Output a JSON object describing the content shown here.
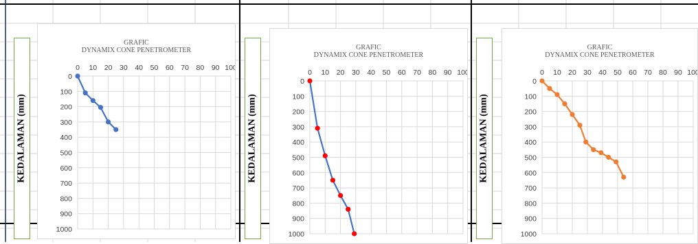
{
  "sheet": {
    "border_color": "#1f2a7a"
  },
  "chart_data": [
    {
      "type": "line",
      "title": "GRAFIC",
      "subtitle": "DYNAMIX CONE PENETROMETER",
      "ylabel": "KEDALAMAN  (mm)",
      "xlim": [
        0,
        100
      ],
      "ylim": [
        0,
        1000
      ],
      "y_inverted": true,
      "x_axis_position": "top",
      "x_ticks": [
        0,
        10,
        20,
        30,
        40,
        50,
        60,
        70,
        80,
        90,
        100
      ],
      "y_ticks": [
        0,
        100,
        200,
        300,
        400,
        500,
        600,
        700,
        800,
        900,
        1000
      ],
      "grid": true,
      "series": [
        {
          "line_color": "#4472c4",
          "marker_color": "#4472c4",
          "x": [
            0,
            5,
            10,
            15,
            20,
            25
          ],
          "y": [
            0,
            110,
            160,
            205,
            300,
            350
          ]
        }
      ]
    },
    {
      "type": "line",
      "title": "GRAFIC",
      "subtitle": "DYNAMIX CONE PENETROMETER",
      "ylabel": "KEDALAMAN  (mm)",
      "xlim": [
        0,
        100
      ],
      "ylim": [
        0,
        1000
      ],
      "y_inverted": true,
      "x_axis_position": "top",
      "x_ticks": [
        0,
        10,
        20,
        30,
        40,
        50,
        60,
        70,
        80,
        90,
        100
      ],
      "y_ticks": [
        0,
        100,
        200,
        300,
        400,
        500,
        600,
        700,
        800,
        900,
        1000
      ],
      "grid": true,
      "series": [
        {
          "line_color": "#4472c4",
          "marker_color": "#ff0000",
          "x": [
            0,
            5,
            10,
            15,
            20,
            25,
            29
          ],
          "y": [
            0,
            310,
            490,
            650,
            750,
            840,
            1000
          ]
        }
      ]
    },
    {
      "type": "line",
      "title": "GRAFIC",
      "subtitle": "DYNAMIX CONE PENETROMETER",
      "ylabel": "KEDALAMAN  (mm)",
      "xlim": [
        0,
        100
      ],
      "ylim": [
        0,
        1000
      ],
      "y_inverted": true,
      "x_axis_position": "top",
      "x_ticks": [
        0,
        10,
        20,
        30,
        40,
        50,
        60,
        70,
        80,
        90,
        100
      ],
      "y_ticks": [
        0,
        100,
        200,
        300,
        400,
        500,
        600,
        700,
        800,
        900,
        1000
      ],
      "grid": true,
      "series": [
        {
          "line_color": "#ed7d31",
          "marker_color": "#ed7d31",
          "x": [
            0,
            5,
            10,
            15,
            20,
            25,
            29,
            34,
            39,
            44,
            49,
            54
          ],
          "y": [
            0,
            50,
            90,
            150,
            220,
            290,
            400,
            450,
            470,
            500,
            530,
            630
          ]
        }
      ]
    }
  ]
}
